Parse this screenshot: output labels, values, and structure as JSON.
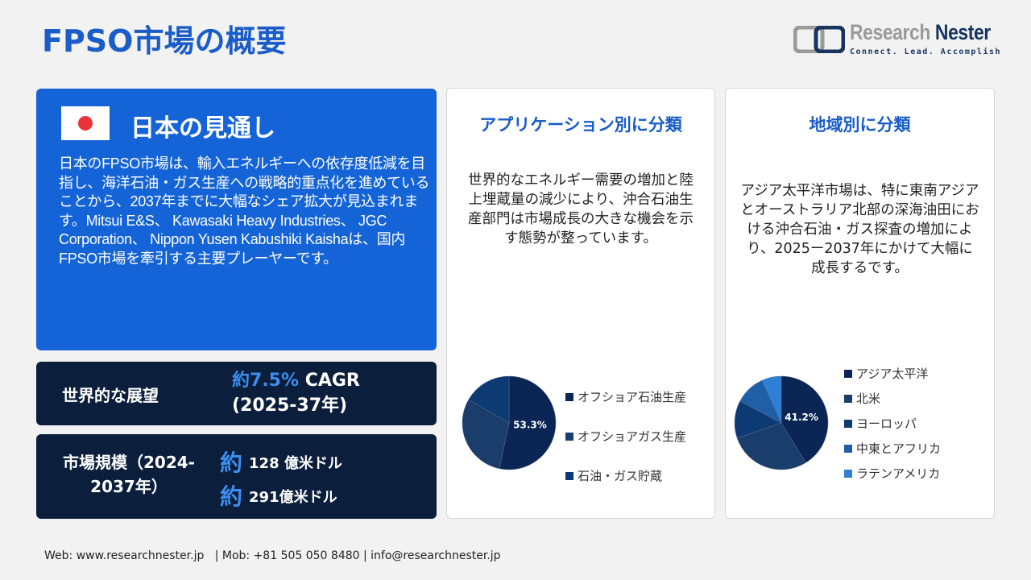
{
  "header": {
    "title": "FPSO市場の概要",
    "logo_name_1": "Research",
    "logo_name_2": "Nester",
    "logo_tagline": "Connect. Lead. Accomplish"
  },
  "japan": {
    "heading": "日本の見通し",
    "body": "日本のFPSO市場は、輸入エネルギーへの依存度低減を目指し、海洋石油・ガス生産への戦略的重点化を進めていることから、2037年までに大幅なシェア拡大が見込まれます。Mitsui E&S、 Kawasaki Heavy Industries、 JGC Corporation、 Nippon Yusen Kabushiki Kaishaは、国内FPSO市場を牽引する主要プレーヤーです。"
  },
  "outlook": {
    "label": "世界的な展望",
    "value_prefix": "約7.5%",
    "value_suffix": " CAGR",
    "period": "(2025-37年)"
  },
  "market_size": {
    "label": "市場規模（2024-2037年）",
    "prefix": "約",
    "value_2024": "128 億米ドル",
    "value_2037": "291億米ドル"
  },
  "chart_data": [
    {
      "type": "pie",
      "title": "アプリケーション別に分類",
      "description": "世界的なエネルギー需要の増加と陸上埋蔵量の減少により、沖合石油生産部門は市場成長の大きな機会を示す態勢が整っています。",
      "categories": [
        "オフショア石油生産",
        "オフショアガス生産",
        "石油・ガス貯蔵"
      ],
      "values": [
        53.3,
        30.0,
        16.7
      ],
      "data_labels": [
        "53.3%",
        "",
        ""
      ],
      "colors": [
        "#0b2554",
        "#1b3d6b",
        "#0e3a73"
      ],
      "legend": "right"
    },
    {
      "type": "pie",
      "title": "地域別に分類",
      "description": "アジア太平洋市場は、特に東南アジアとオーストラリア北部の深海油田における沖合石油・ガス探査の増加により、2025ー2037年にかけて大幅に成長するです。",
      "categories": [
        "アジア太平洋",
        "北米",
        "ヨーロッパ",
        "中東とアフリカ",
        "ラテンアメリカ"
      ],
      "values": [
        41.2,
        28.5,
        13.0,
        10.5,
        6.8
      ],
      "data_labels": [
        "41.2%",
        "",
        "",
        "",
        ""
      ],
      "colors": [
        "#0b2554",
        "#1b3d6b",
        "#0e3a73",
        "#1f5fa8",
        "#2e7fd6"
      ],
      "legend": "right"
    }
  ],
  "footer": {
    "text": "Web: www.researchnester.jp   | Mob: +81 505 050 8480 | info@researchnester.jp"
  }
}
